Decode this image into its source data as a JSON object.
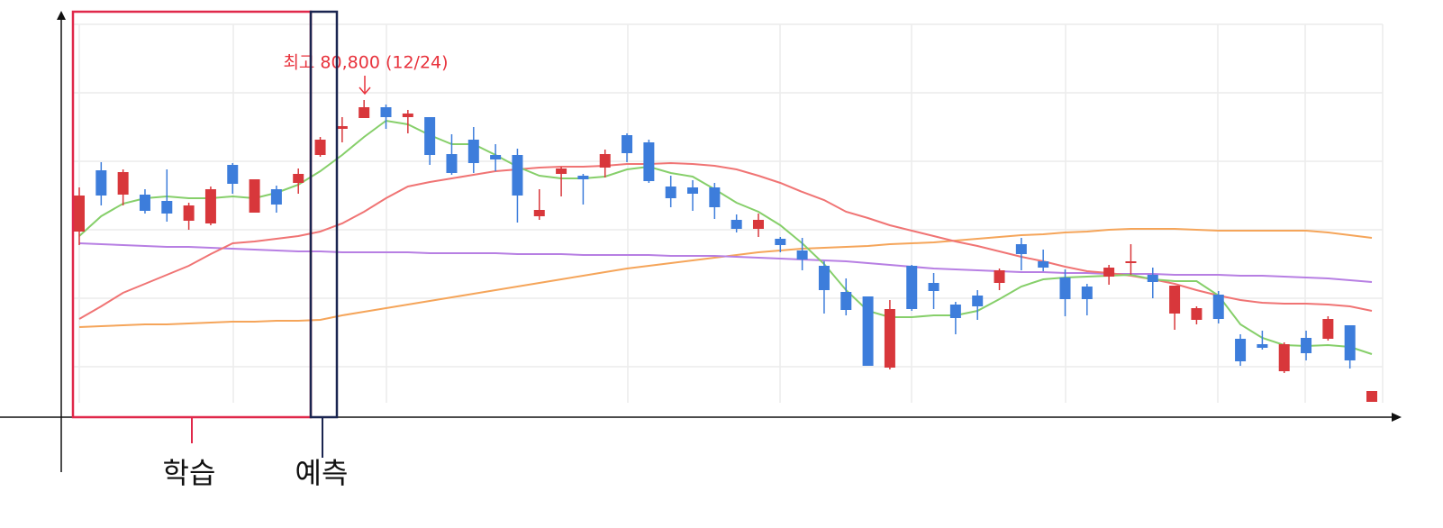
{
  "chart_data": {
    "type": "candlestick",
    "categories": [
      null,
      null,
      null,
      null,
      null,
      null,
      null,
      null,
      null,
      null,
      null,
      null,
      null,
      null,
      null,
      null,
      null,
      null,
      null,
      null,
      null,
      null,
      null,
      null,
      null,
      null,
      null,
      null,
      null,
      null,
      null,
      null,
      null,
      null,
      null,
      null,
      null,
      null,
      null,
      null,
      null,
      null,
      null,
      null,
      null,
      null,
      null,
      null,
      null,
      null,
      null,
      null,
      null,
      null,
      null,
      null,
      null,
      null,
      null,
      null
    ],
    "open": [
      77150,
      78850,
      78175,
      78175,
      78000,
      77450,
      77375,
      79000,
      77675,
      78325,
      78500,
      79275,
      80000,
      80300,
      80600,
      80325,
      80325,
      79300,
      79700,
      79275,
      79275,
      77575,
      78750,
      78700,
      78925,
      79825,
      79625,
      78400,
      78375,
      78375,
      77475,
      77225,
      76950,
      76625,
      76200,
      75475,
      75350,
      73375,
      76200,
      75725,
      75125,
      75375,
      75725,
      76800,
      76325,
      75875,
      75625,
      75900,
      76275,
      75950,
      74875,
      74700,
      75400,
      74175,
      74025,
      73275,
      74200,
      74175,
      74550,
      72425
    ],
    "high": [
      78375,
      79075,
      78875,
      78325,
      78875,
      77950,
      78400,
      79050,
      78600,
      78425,
      78900,
      79775,
      80325,
      80800,
      80675,
      80525,
      80325,
      79850,
      80050,
      79575,
      79450,
      78325,
      78950,
      78750,
      79425,
      79875,
      79700,
      78700,
      78575,
      78500,
      77625,
      77650,
      77000,
      76975,
      76325,
      75850,
      75350,
      75250,
      76225,
      76000,
      75200,
      75525,
      76125,
      76975,
      76650,
      76100,
      75700,
      76225,
      76800,
      76150,
      75650,
      75075,
      75500,
      74300,
      74400,
      74075,
      74400,
      74800,
      74550,
      72725
    ],
    "low": [
      76775,
      77875,
      77875,
      77650,
      77425,
      77200,
      77325,
      78200,
      77675,
      77675,
      78200,
      79225,
      79625,
      80300,
      80000,
      79875,
      79000,
      78725,
      78775,
      78825,
      77400,
      77475,
      78125,
      77900,
      78650,
      79075,
      78500,
      77825,
      77725,
      77500,
      77125,
      77000,
      76575,
      76075,
      74875,
      74825,
      73425,
      73325,
      74950,
      75000,
      74300,
      74700,
      75525,
      76075,
      76050,
      74800,
      74825,
      75675,
      75950,
      75300,
      74425,
      74575,
      74600,
      73425,
      73875,
      73225,
      73575,
      74125,
      73350,
      72425
    ],
    "close": [
      78150,
      78150,
      78800,
      77725,
      77650,
      77875,
      78325,
      78475,
      78600,
      77900,
      78750,
      79700,
      80075,
      80600,
      80325,
      80425,
      79275,
      78775,
      79050,
      79150,
      78150,
      77750,
      78900,
      78600,
      79300,
      79325,
      78550,
      78075,
      78200,
      77825,
      77225,
      77475,
      76775,
      76375,
      75525,
      74975,
      73425,
      75000,
      75000,
      75500,
      74750,
      75075,
      76075,
      76525,
      76150,
      75275,
      75275,
      76150,
      76325,
      75750,
      75650,
      75025,
      74725,
      73550,
      73925,
      74025,
      73775,
      74725,
      73575,
      72725
    ],
    "up_color": "#d8373b",
    "down_color": "#3d7ddb",
    "lines": [
      {
        "color": "#f5a55a",
        "values": [
          74500,
          74525,
          74550,
          74575,
          74575,
          74600,
          74625,
          74650,
          74650,
          74675,
          74675,
          74700,
          74825,
          74925,
          75025,
          75125,
          75225,
          75325,
          75425,
          75525,
          75625,
          75725,
          75825,
          75925,
          76025,
          76125,
          76200,
          76275,
          76350,
          76425,
          76500,
          76575,
          76625,
          76675,
          76700,
          76725,
          76750,
          76800,
          76825,
          76850,
          76900,
          76950,
          77000,
          77050,
          77075,
          77125,
          77150,
          77200,
          77225,
          77225,
          77225,
          77200,
          77175,
          77175,
          77175,
          77175,
          77175,
          77125,
          77050,
          76975
        ]
      },
      {
        "color": "#b77fe3",
        "values": [
          76825,
          76800,
          76775,
          76750,
          76725,
          76725,
          76700,
          76675,
          76650,
          76625,
          76600,
          76600,
          76575,
          76575,
          76575,
          76575,
          76550,
          76550,
          76550,
          76550,
          76525,
          76525,
          76525,
          76500,
          76500,
          76500,
          76500,
          76475,
          76475,
          76475,
          76450,
          76425,
          76400,
          76375,
          76350,
          76325,
          76275,
          76225,
          76175,
          76125,
          76100,
          76075,
          76050,
          76025,
          76025,
          76000,
          76000,
          75975,
          75975,
          75975,
          75950,
          75950,
          75950,
          75925,
          75925,
          75900,
          75875,
          75850,
          75800,
          75750
        ]
      },
      {
        "color": "#f07474",
        "values": [
          74725,
          75075,
          75450,
          75700,
          75950,
          76200,
          76525,
          76825,
          76875,
          76950,
          77025,
          77150,
          77375,
          77700,
          78075,
          78400,
          78525,
          78625,
          78725,
          78825,
          78875,
          78925,
          78950,
          78950,
          78975,
          79025,
          79025,
          79050,
          79025,
          78975,
          78875,
          78700,
          78500,
          78250,
          78025,
          77700,
          77525,
          77325,
          77175,
          77025,
          76875,
          76750,
          76600,
          76450,
          76325,
          76175,
          76050,
          76000,
          75925,
          75825,
          75700,
          75525,
          75375,
          75250,
          75175,
          75150,
          75150,
          75125,
          75075,
          74950
        ]
      },
      {
        "color": "#86cf6a",
        "values": [
          77025,
          77575,
          77925,
          78075,
          78125,
          78075,
          78075,
          78125,
          78075,
          78225,
          78450,
          78825,
          79275,
          79775,
          80225,
          80125,
          79825,
          79575,
          79575,
          79275,
          78950,
          78700,
          78625,
          78625,
          78675,
          78875,
          78950,
          78775,
          78675,
          78325,
          77950,
          77700,
          77325,
          76825,
          76250,
          75525,
          74950,
          74775,
          74775,
          74825,
          74825,
          74950,
          75275,
          75625,
          75825,
          75875,
          75900,
          75925,
          75950,
          75825,
          75775,
          75775,
          75375,
          74575,
          74200,
          74000,
          73975,
          74000,
          73950,
          73750
        ]
      }
    ],
    "ylim": [
      72000,
      83300
    ],
    "yticks": [
      82900,
      81000,
      79100,
      77200,
      75300,
      73400
    ],
    "grid": true,
    "annotation": {
      "text": "최고 80,800 (12/24)",
      "color": "#e8323c"
    },
    "regions": [
      {
        "label": "학습",
        "color": "#e0284a"
      },
      {
        "label": "예측",
        "color": "#1a2550"
      }
    ]
  }
}
